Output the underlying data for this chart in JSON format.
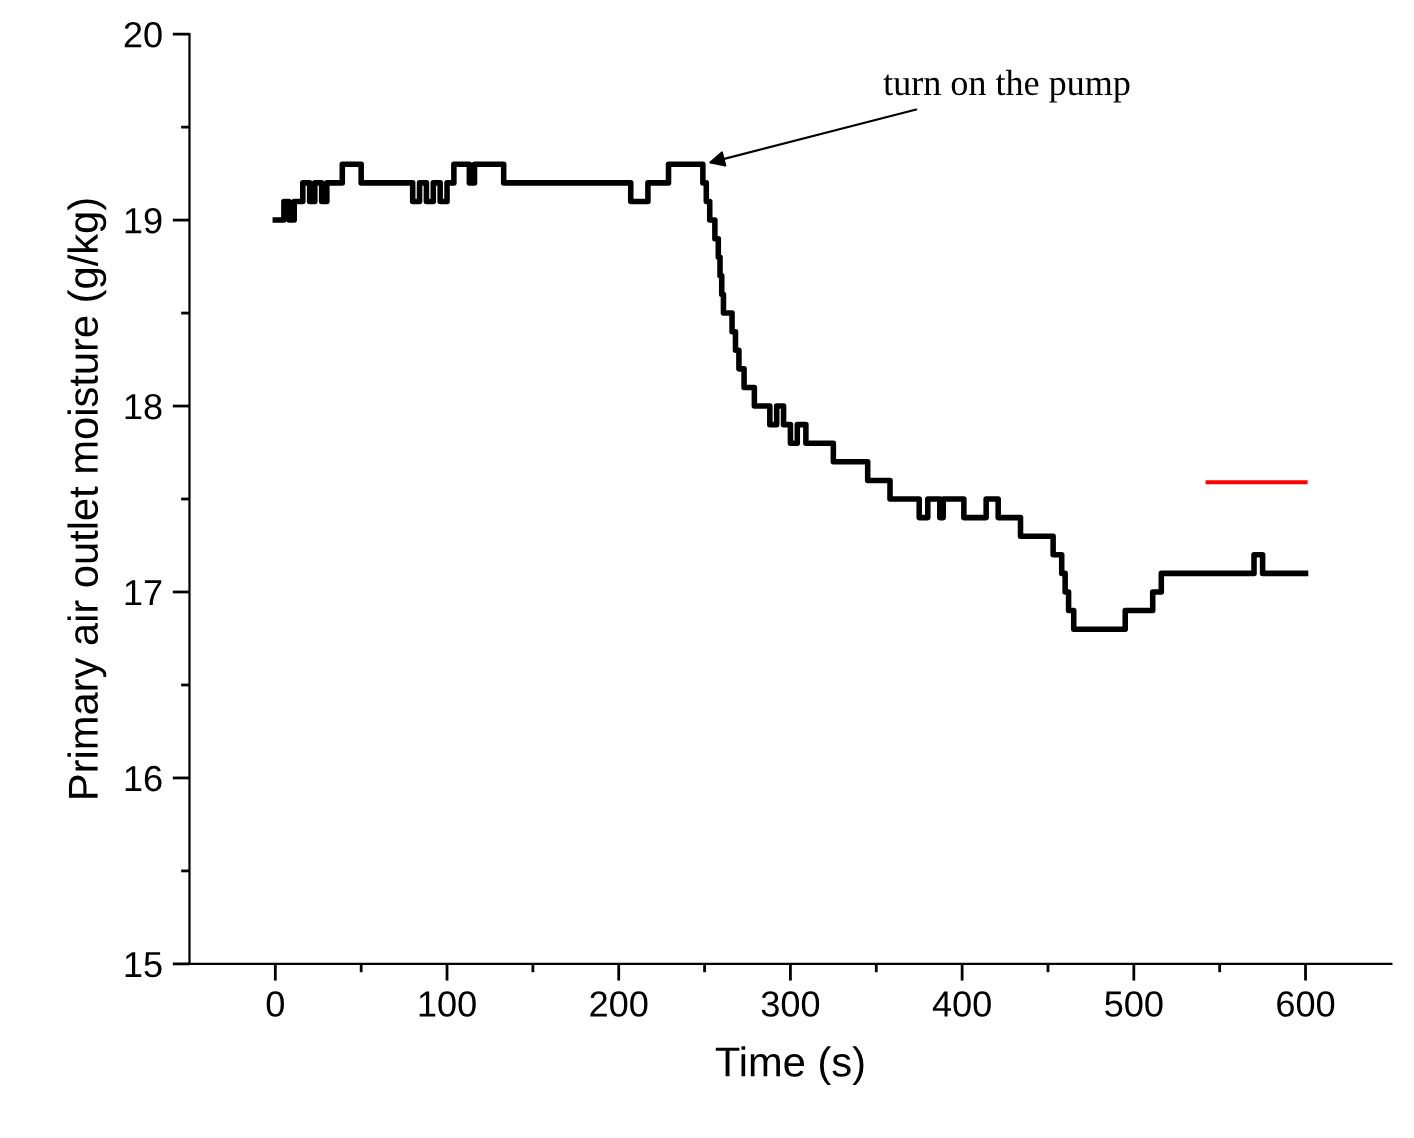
{
  "chart_data": {
    "type": "step",
    "xlabel": "Time (s)",
    "ylabel": "Primary air outlet moisture (g/kg)",
    "xlim": [
      -50,
      650
    ],
    "xticks": [
      0,
      {
        "value": 50,
        "label": null
      },
      100,
      {
        "value": 150,
        "label": null
      },
      200,
      {
        "value": 250,
        "label": null
      },
      300,
      {
        "value": 350,
        "label": null
      },
      400,
      {
        "value": 450,
        "label": null
      },
      500,
      {
        "value": 550,
        "label": null
      },
      600
    ],
    "ylim": [
      15,
      20
    ],
    "yticks": [
      15,
      {
        "value": 15.5,
        "label": null
      },
      16,
      {
        "value": 16.5,
        "label": null
      },
      17,
      {
        "value": 17.5,
        "label": null
      },
      18,
      {
        "value": 18.5,
        "label": null
      },
      19,
      {
        "value": 19.5,
        "label": null
      },
      20
    ],
    "grid": false,
    "legend": false,
    "series": [
      {
        "color": "#000000",
        "x": [
          0,
          5,
          8,
          11,
          16,
          20,
          23,
          27,
          30,
          39,
          50,
          80,
          84,
          88,
          92,
          96,
          100,
          104,
          113,
          116,
          133,
          207,
          217,
          229,
          249,
          251,
          253,
          256,
          258,
          259,
          260,
          261,
          266,
          268,
          270,
          273,
          279,
          288,
          292,
          296,
          300,
          304,
          309,
          325,
          345,
          358,
          375,
          380,
          387,
          389,
          401,
          414,
          421,
          434,
          453,
          458,
          460,
          462,
          465,
          495,
          511,
          516,
          570,
          575,
          600
        ],
        "values": [
          19.0,
          19.1,
          19.0,
          19.1,
          19.2,
          19.1,
          19.2,
          19.1,
          19.2,
          19.3,
          19.2,
          19.1,
          19.2,
          19.1,
          19.2,
          19.1,
          19.2,
          19.3,
          19.2,
          19.3,
          19.2,
          19.1,
          19.2,
          19.3,
          19.2,
          19.1,
          19.0,
          18.9,
          18.8,
          18.7,
          18.6,
          18.5,
          18.4,
          18.3,
          18.2,
          18.1,
          18.0,
          17.9,
          18.0,
          17.9,
          17.8,
          17.9,
          17.8,
          17.7,
          17.6,
          17.5,
          17.4,
          17.5,
          17.4,
          17.5,
          17.4,
          17.5,
          17.4,
          17.3,
          17.2,
          17.1,
          17.0,
          16.9,
          16.8,
          16.9,
          17.0,
          17.1,
          17.2,
          17.1,
          17.1
        ]
      },
      {
        "type": "line",
        "color": "#ff0000",
        "x": [
          543,
          600
        ],
        "values": [
          17.59,
          17.59
        ]
      }
    ],
    "annotations": [
      {
        "text": "turn on the pump",
        "x": 249,
        "y": 19.3
      }
    ]
  }
}
